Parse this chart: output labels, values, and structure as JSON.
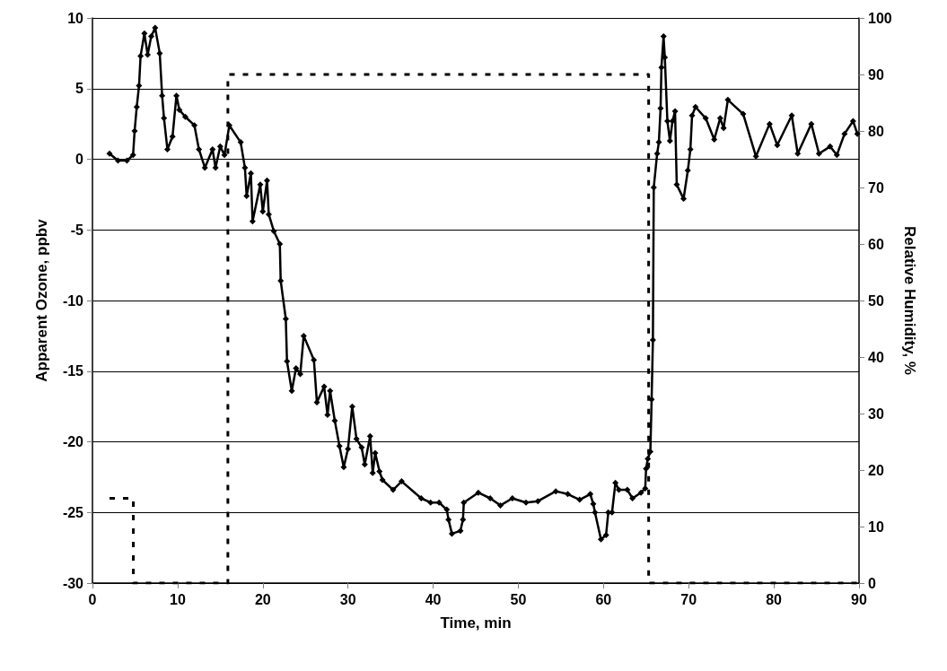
{
  "chart_data": {
    "type": "line",
    "xlabel": "Time, min",
    "ylabel": "Apparent Ozone, ppbv",
    "y2label": "Relative Humidity, %",
    "xlim": [
      0,
      90
    ],
    "xticks": [
      0,
      10,
      20,
      30,
      40,
      50,
      60,
      70,
      80,
      90
    ],
    "ylim": [
      -30,
      10
    ],
    "yticks": [
      -30,
      -25,
      -20,
      -15,
      -10,
      -5,
      0,
      5,
      10
    ],
    "y2lim": [
      0,
      100
    ],
    "y2ticks": [
      0,
      10,
      20,
      30,
      40,
      50,
      60,
      70,
      80,
      90,
      100
    ],
    "grid": "y",
    "series": [
      {
        "color": "#000000",
        "marker": "diamond",
        "line_style": "solid",
        "x": [
          2.0,
          3.0,
          4.05,
          4.77,
          4.95,
          5.2,
          5.47,
          5.65,
          6.1,
          6.48,
          6.9,
          7.36,
          7.9,
          8.18,
          8.4,
          8.8,
          9.4,
          9.86,
          10.2,
          10.9,
          11.97,
          12.5,
          13.2,
          14.1,
          14.45,
          15.0,
          15.5,
          16.07,
          17.4,
          17.9,
          18.1,
          18.6,
          18.8,
          19.7,
          20.0,
          20.5,
          20.7,
          21.3,
          22.0,
          22.1,
          22.7,
          22.84,
          23.4,
          23.9,
          24.4,
          24.8,
          26.0,
          26.35,
          27.2,
          27.6,
          27.9,
          28.45,
          29.0,
          29.5,
          30.0,
          30.5,
          31.0,
          31.6,
          31.97,
          32.6,
          32.9,
          33.2,
          33.7,
          34.05,
          35.3,
          36.3,
          38.6,
          39.7,
          40.7,
          41.6,
          41.8,
          42.2,
          43.2,
          43.5,
          43.6,
          45.3,
          46.7,
          47.9,
          49.3,
          50.9,
          52.3,
          54.4,
          55.8,
          57.2,
          58.45,
          58.8,
          59.0,
          59.7,
          60.3,
          60.56,
          61.0,
          61.4,
          61.8,
          62.8,
          63.4,
          64.4,
          64.9,
          65.0,
          65.2,
          65.5,
          65.65,
          65.8,
          65.9,
          66.3,
          66.5,
          66.7,
          66.8,
          67.05,
          67.2,
          67.5,
          67.8,
          68.1,
          68.4,
          68.6,
          69.4,
          69.9,
          70.2,
          70.4,
          70.8,
          72.0,
          73.0,
          73.7,
          74.1,
          74.6,
          76.4,
          77.9,
          79.5,
          80.4,
          82.1,
          82.8,
          84.4,
          85.3,
          86.6,
          87.4,
          88.3,
          89.3,
          89.8
        ],
        "values": [
          0.4,
          -0.1,
          -0.1,
          0.3,
          2.0,
          3.7,
          5.2,
          7.3,
          8.9,
          7.4,
          8.7,
          9.3,
          7.5,
          4.5,
          2.9,
          0.7,
          1.6,
          4.5,
          3.5,
          3.0,
          2.4,
          0.7,
          -0.6,
          0.7,
          -0.6,
          0.9,
          0.3,
          2.4,
          1.2,
          -0.6,
          -2.6,
          -1.0,
          -4.4,
          -1.8,
          -3.7,
          -1.5,
          -3.9,
          -5.1,
          -6.0,
          -8.6,
          -11.3,
          -14.3,
          -16.4,
          -14.8,
          -15.2,
          -12.5,
          -14.2,
          -17.2,
          -16.1,
          -18.1,
          -16.4,
          -18.5,
          -20.3,
          -21.8,
          -20.5,
          -17.5,
          -19.8,
          -20.4,
          -21.6,
          -19.6,
          -22.2,
          -20.8,
          -22.1,
          -22.7,
          -23.4,
          -22.8,
          -24.0,
          -24.3,
          -24.3,
          -24.8,
          -25.5,
          -26.5,
          -26.3,
          -25.5,
          -24.3,
          -23.6,
          -24.0,
          -24.5,
          -24.0,
          -24.3,
          -24.2,
          -23.5,
          -23.7,
          -24.1,
          -23.7,
          -24.4,
          -25.0,
          -26.9,
          -26.6,
          -25.0,
          -25.0,
          -22.9,
          -23.4,
          -23.4,
          -24.0,
          -23.6,
          -23.3,
          -21.9,
          -21.2,
          -20.7,
          -17.0,
          -12.8,
          -2.0,
          0.4,
          1.2,
          3.6,
          6.5,
          8.7,
          7.2,
          2.7,
          1.3,
          2.7,
          3.4,
          -1.8,
          -2.8,
          -0.8,
          0.7,
          3.1,
          3.7,
          2.9,
          1.4,
          2.9,
          2.2,
          4.2,
          3.2,
          0.2,
          2.5,
          1.0,
          3.1,
          0.4,
          2.5,
          0.4,
          0.9,
          0.3,
          1.8,
          2.7,
          1.8
        ]
      },
      {
        "color": "#000000",
        "axis": "y2",
        "marker": "none",
        "line_style": "dashed",
        "x": [
          2.0,
          4.8,
          4.8,
          15.9,
          15.9,
          65.3,
          65.3,
          90.0
        ],
        "values": [
          15,
          15,
          0,
          0,
          90,
          90,
          0,
          0
        ]
      }
    ]
  }
}
